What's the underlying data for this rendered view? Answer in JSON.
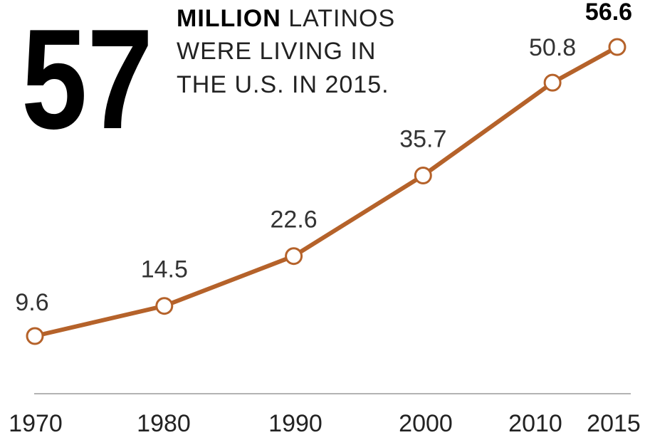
{
  "headline": {
    "big_number": "57",
    "line1_strong": "MILLION",
    "line1_rest": " LATINOS",
    "line2": "WERE LIVING IN",
    "line3": "THE U.S. IN 2015."
  },
  "colors": {
    "line": "#b5622a",
    "marker_fill": "#ffffff",
    "axis": "#b3b3b3"
  },
  "chart_data": {
    "type": "line",
    "title": "57 MILLION LATINOS WERE LIVING IN THE U.S. IN 2015.",
    "xlabel": "",
    "ylabel": "",
    "categories": [
      "1970",
      "1980",
      "1990",
      "2000",
      "2010",
      "2015"
    ],
    "x": [
      1970,
      1980,
      1990,
      2000,
      2010,
      2015
    ],
    "series": [
      {
        "values": [
          9.6,
          14.5,
          22.6,
          35.7,
          50.8,
          56.6
        ],
        "labels": [
          "9.6",
          "14.5",
          "22.6",
          "35.7",
          "50.8",
          "56.6"
        ]
      }
    ],
    "xlim": [
      1970,
      2015
    ],
    "ylim": [
      0,
      60
    ],
    "grid": false,
    "legend": "none",
    "data_labels": true,
    "markers": "open-circle"
  }
}
